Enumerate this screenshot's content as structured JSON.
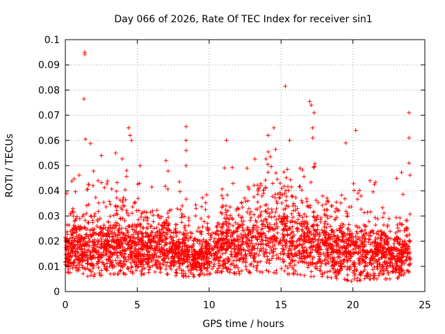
{
  "chart_data": {
    "type": "scatter",
    "title": "Day 066 of 2026, Rate Of TEC Index for receiver sin1",
    "xlabel": "GPS time / hours",
    "ylabel": "ROTI / TECUs",
    "xlim": [
      0,
      25
    ],
    "ylim": [
      0,
      0.1
    ],
    "x_ticks": [
      0,
      5,
      10,
      15,
      20,
      25
    ],
    "x_tick_labels": [
      "0",
      "5",
      "10",
      "15",
      "20",
      "25"
    ],
    "y_ticks": [
      0,
      0.01,
      0.02,
      0.03,
      0.04,
      0.05,
      0.06,
      0.07,
      0.08,
      0.09,
      0.1
    ],
    "y_tick_labels": [
      "0",
      "0.01",
      "0.02",
      "0.03",
      "0.04",
      "0.05",
      "0.06",
      "0.07",
      "0.08",
      "0.09",
      "0.1"
    ],
    "grid": true,
    "marker": "+",
    "color": "#ff0000",
    "series": [
      {
        "name": "ROTI",
        "note": "dense cloud of samples spanning 0-24 h; outliers listed explicitly, bulk summarised by hourly envelope",
        "outliers": [
          {
            "x": 1.35,
            "y": 0.095
          },
          {
            "x": 1.35,
            "y": 0.0942
          },
          {
            "x": 1.3,
            "y": 0.0765
          },
          {
            "x": 1.4,
            "y": 0.0605
          },
          {
            "x": 1.75,
            "y": 0.0588
          },
          {
            "x": 2.5,
            "y": 0.054
          },
          {
            "x": 3.5,
            "y": 0.055
          },
          {
            "x": 4.4,
            "y": 0.065
          },
          {
            "x": 4.5,
            "y": 0.062
          },
          {
            "x": 4.6,
            "y": 0.06
          },
          {
            "x": 5.2,
            "y": 0.05
          },
          {
            "x": 7.0,
            "y": 0.052
          },
          {
            "x": 8.4,
            "y": 0.0655
          },
          {
            "x": 8.4,
            "y": 0.06
          },
          {
            "x": 8.4,
            "y": 0.056
          },
          {
            "x": 8.4,
            "y": 0.05
          },
          {
            "x": 11.2,
            "y": 0.06
          },
          {
            "x": 14.1,
            "y": 0.062
          },
          {
            "x": 14.5,
            "y": 0.065
          },
          {
            "x": 15.3,
            "y": 0.0815
          },
          {
            "x": 15.6,
            "y": 0.06
          },
          {
            "x": 17.0,
            "y": 0.0755
          },
          {
            "x": 17.1,
            "y": 0.074
          },
          {
            "x": 17.3,
            "y": 0.071
          },
          {
            "x": 17.2,
            "y": 0.065
          },
          {
            "x": 17.2,
            "y": 0.061
          },
          {
            "x": 19.5,
            "y": 0.059
          },
          {
            "x": 20.2,
            "y": 0.064
          },
          {
            "x": 23.9,
            "y": 0.071
          },
          {
            "x": 23.9,
            "y": 0.061
          },
          {
            "x": 23.9,
            "y": 0.051
          }
        ],
        "envelope": {
          "hours": [
            0,
            1,
            2,
            3,
            4,
            5,
            6,
            7,
            8,
            9,
            10,
            11,
            12,
            13,
            14,
            15,
            16,
            17,
            18,
            19,
            20,
            21,
            22,
            23,
            24
          ],
          "lower": [
            0.008,
            0.006,
            0.006,
            0.007,
            0.007,
            0.006,
            0.008,
            0.007,
            0.006,
            0.006,
            0.007,
            0.008,
            0.007,
            0.007,
            0.008,
            0.007,
            0.007,
            0.006,
            0.006,
            0.005,
            0.004,
            0.005,
            0.005,
            0.005,
            0.008
          ],
          "typical_upper": [
            0.03,
            0.034,
            0.035,
            0.036,
            0.04,
            0.033,
            0.032,
            0.034,
            0.033,
            0.027,
            0.03,
            0.036,
            0.036,
            0.042,
            0.046,
            0.045,
            0.044,
            0.04,
            0.038,
            0.036,
            0.034,
            0.032,
            0.032,
            0.03,
            0.028
          ],
          "spike_upper": [
            0.046,
            0.048,
            0.052,
            0.046,
            0.054,
            0.048,
            0.044,
            0.05,
            0.047,
            0.035,
            0.042,
            0.052,
            0.05,
            0.056,
            0.058,
            0.057,
            0.055,
            0.052,
            0.049,
            0.05,
            0.046,
            0.045,
            0.044,
            0.048,
            0.05
          ]
        }
      }
    ]
  }
}
